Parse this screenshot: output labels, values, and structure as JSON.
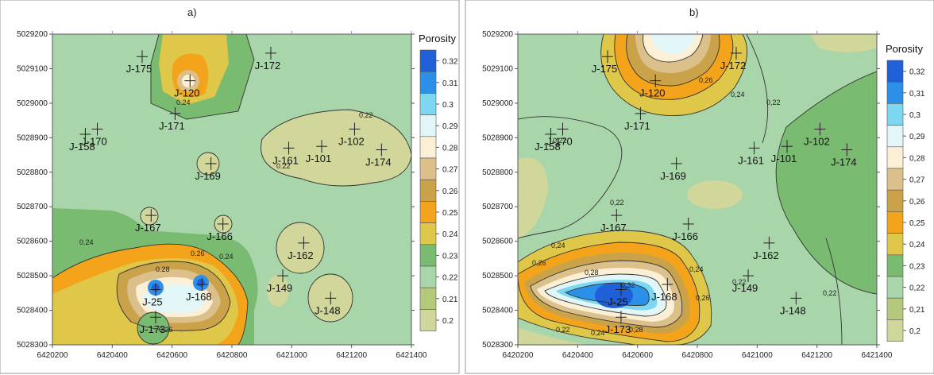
{
  "panels": [
    {
      "id": "a",
      "label": "a)",
      "legend_title": "Porosity",
      "legend_values": [
        "0.32",
        "0.31",
        "0.3",
        "0.29",
        "0.28",
        "0.27",
        "0.26",
        "0.25",
        "0.24",
        "0.23",
        "0.22",
        "0.21",
        "0.2"
      ],
      "x_ticks": [
        "6420200",
        "6420400",
        "6420600",
        "6420800",
        "6421000",
        "6421200",
        "6421400"
      ],
      "y_ticks": [
        "5029200",
        "5029100",
        "5029000",
        "5028900",
        "5028800",
        "5028700",
        "5028600",
        "5028500",
        "5028400",
        "5028300"
      ],
      "contour_labels": [
        "0.24",
        "0.22",
        "0.22",
        "0.24",
        "0.26",
        "0.24",
        "0.28",
        "0.26"
      ]
    },
    {
      "id": "b",
      "label": "b)",
      "legend_title": "Porosity",
      "legend_values": [
        "0,32",
        "0,31",
        "0,3",
        "0,29",
        "0,28",
        "0,27",
        "0,26",
        "0,25",
        "0,24",
        "0,23",
        "0,22",
        "0,21",
        "0,2"
      ],
      "x_ticks": [
        "6420200",
        "6420400",
        "6420600",
        "6420800",
        "6421000",
        "6421200",
        "6421400"
      ],
      "y_ticks": [
        "5029200",
        "5029100",
        "5029000",
        "5028900",
        "5028800",
        "5028700",
        "5028600",
        "5028500",
        "5028400",
        "5028300"
      ],
      "contour_labels": [
        "0,26",
        "0,24",
        "0,22",
        "0,22",
        "0,22",
        "0,24",
        "0,26",
        "0,28",
        "0,32",
        "0,24",
        "0,26",
        "0,22",
        "0,22",
        "0,24",
        "0,28",
        "0,22"
      ]
    }
  ],
  "wells": [
    {
      "name": "J-175",
      "x": 6420500,
      "y": 5029135
    },
    {
      "name": "J-120",
      "x": 6420660,
      "y": 5029065
    },
    {
      "name": "J-172",
      "x": 6420930,
      "y": 5029145
    },
    {
      "name": "J-171",
      "x": 6420610,
      "y": 5028970
    },
    {
      "name": "J-170",
      "x": 6420350,
      "y": 5028925
    },
    {
      "name": "J-158",
      "x": 6420310,
      "y": 5028910
    },
    {
      "name": "J-161",
      "x": 6420990,
      "y": 5028870
    },
    {
      "name": "J-101",
      "x": 6421100,
      "y": 5028875
    },
    {
      "name": "J-102",
      "x": 6421210,
      "y": 5028925
    },
    {
      "name": "J-174",
      "x": 6421300,
      "y": 5028865
    },
    {
      "name": "J-169",
      "x": 6420730,
      "y": 5028825
    },
    {
      "name": "J-167",
      "x": 6420530,
      "y": 5028675
    },
    {
      "name": "J-166",
      "x": 6420770,
      "y": 5028650
    },
    {
      "name": "J-162",
      "x": 6421040,
      "y": 5028595
    },
    {
      "name": "J-149",
      "x": 6420970,
      "y": 5028500
    },
    {
      "name": "J-148",
      "x": 6421130,
      "y": 5028435
    },
    {
      "name": "J-25",
      "x": 6420545,
      "y": 5028460
    },
    {
      "name": "J-168",
      "x": 6420700,
      "y": 5028475
    },
    {
      "name": "J-173",
      "x": 6420545,
      "y": 5028380
    }
  ],
  "scale_colors": {
    "0.32": "#1f5fd8",
    "0.31": "#2c8fe8",
    "0.30": "#7ed7f0",
    "0.29": "#e3f6f7",
    "0.28": "#fbf0d6",
    "0.27": "#dcc08c",
    "0.26": "#c9a24a",
    "0.25": "#f4a41b",
    "0.24": "#dfc74a",
    "0.23": "#79bb70",
    "0.22": "#a8d5a9",
    "0.21": "#b5c97c",
    "0.20": "#d1d69a"
  }
}
